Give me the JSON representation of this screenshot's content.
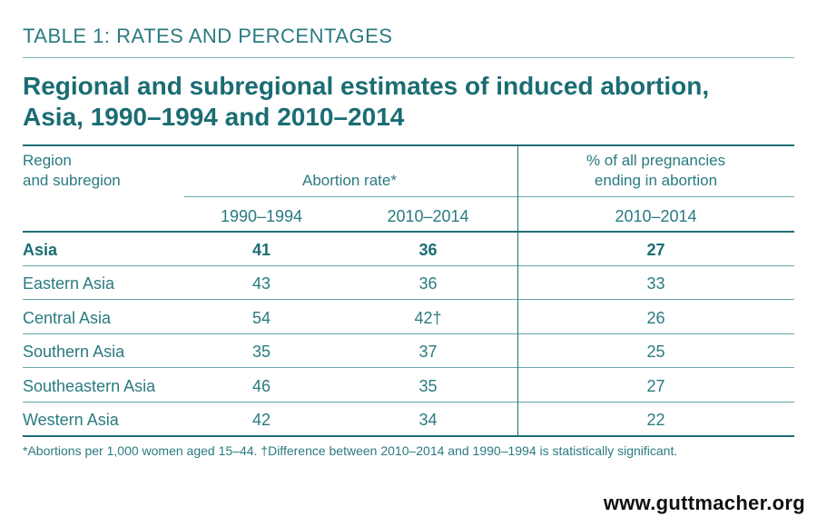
{
  "header": {
    "kicker": "TABLE 1: RATES AND PERCENTAGES",
    "title_line1": "Regional and subregional estimates of induced abortion,",
    "title_line2": "Asia, 1990–1994 and 2010–2014"
  },
  "table": {
    "col_region": "Region\nand subregion",
    "col_rate": "Abortion rate*",
    "col_pct": "% of all pregnancies\nending in abortion",
    "sub_1990": "1990–1994",
    "sub_2010": "2010–2014",
    "sub_pct": "2010–2014",
    "rows": [
      {
        "region": "Asia",
        "r1990": "41",
        "r2010": "36",
        "pct": "27"
      },
      {
        "region": "Eastern Asia",
        "r1990": "43",
        "r2010": "36",
        "pct": "33"
      },
      {
        "region": "Central Asia",
        "r1990": "54",
        "r2010": "42†",
        "pct": "26"
      },
      {
        "region": "Southern Asia",
        "r1990": "35",
        "r2010": "37",
        "pct": "25"
      },
      {
        "region": "Southeastern Asia",
        "r1990": "46",
        "r2010": "35",
        "pct": "27"
      },
      {
        "region": "Western Asia",
        "r1990": "42",
        "r2010": "34",
        "pct": "22"
      }
    ]
  },
  "footnote": "*Abortions per 1,000 women aged 15–44. †Difference between 2010–2014 and 1990–1994 is statistically significant.",
  "brand": "www.guttmacher.org",
  "colors": {
    "accent": "#1f6e73",
    "rule": "#7fb3b6"
  }
}
